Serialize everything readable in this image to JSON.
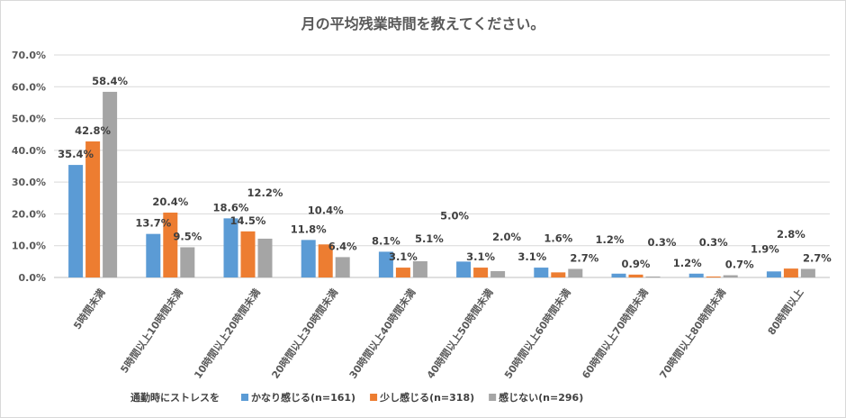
{
  "chart_data": {
    "type": "bar",
    "title": "月の平均残業時間を教えてください。",
    "categories": [
      "5時間未満",
      "5時間以上10時間未満",
      "10時間以上20時間未満",
      "20時間以上30時間未満",
      "30時間以上40時間未満",
      "40時間以上50時間未満",
      "50時間以上60時間未満",
      "60時間以上70時間未満",
      "70時間以上80時間未満",
      "80時間以上"
    ],
    "legend_title": "通勤時にストレスを",
    "series": [
      {
        "name": "かなり感じる(n=161)",
        "color": "#5B9BD5",
        "values": [
          35.4,
          13.7,
          18.6,
          11.8,
          8.1,
          5.0,
          3.1,
          1.2,
          1.2,
          1.9
        ]
      },
      {
        "name": "少し感じる(n=318)",
        "color": "#ED7D31",
        "values": [
          42.8,
          20.4,
          14.5,
          10.4,
          3.1,
          3.1,
          1.6,
          0.9,
          0.3,
          2.8
        ]
      },
      {
        "name": "感じない(n=296)",
        "color": "#A5A5A5",
        "values": [
          58.4,
          9.5,
          12.2,
          6.4,
          5.1,
          2.0,
          2.7,
          0.3,
          0.7,
          2.7
        ]
      }
    ],
    "ylim": [
      0,
      70
    ],
    "yticks": [
      "0.0%",
      "10.0%",
      "20.0%",
      "30.0%",
      "40.0%",
      "50.0%",
      "60.0%",
      "70.0%"
    ],
    "grid": true,
    "legend_position": "bottom",
    "value_format": "percent, 1 decimal"
  }
}
